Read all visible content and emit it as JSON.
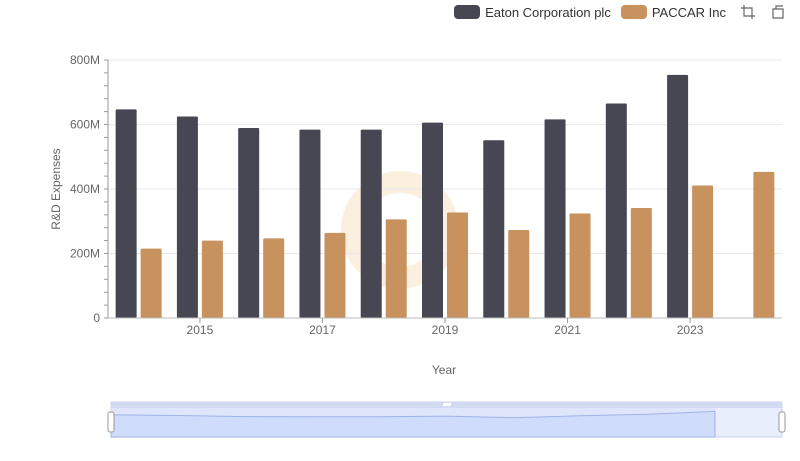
{
  "chart_data": {
    "type": "bar",
    "xlabel": "Year",
    "ylabel": "R&D Expenses",
    "x": [
      2014,
      2015,
      2016,
      2017,
      2018,
      2019,
      2020,
      2021,
      2022,
      2023,
      2024
    ],
    "x_tick_labels": [
      "2015",
      "2017",
      "2019",
      "2021",
      "2023"
    ],
    "y_tick_labels": [
      "0",
      "200M",
      "400M",
      "600M",
      "800M"
    ],
    "ylim": [
      0,
      800000000
    ],
    "grid": true,
    "legend_position": "top-right",
    "series": [
      {
        "name": "Eaton Corporation plc",
        "color": "#474754",
        "values": [
          647000000,
          625000000,
          589000000,
          584000000,
          584000000,
          606000000,
          551000000,
          616000000,
          665000000,
          754000000,
          null
        ]
      },
      {
        "name": "PACCAR Inc",
        "color": "#c8925e",
        "values": [
          215000000,
          240000000,
          247000000,
          264000000,
          306000000,
          327000000,
          273000000,
          324000000,
          341000000,
          411000000,
          453000000
        ]
      }
    ]
  },
  "legend": {
    "items": [
      {
        "label": "Eaton Corporation plc",
        "color": "#474754"
      },
      {
        "label": "PACCAR Inc",
        "color": "#c8925e"
      }
    ]
  },
  "toolbar": {
    "icons": [
      "zoom-select-icon",
      "zoom-reset-icon"
    ]
  }
}
